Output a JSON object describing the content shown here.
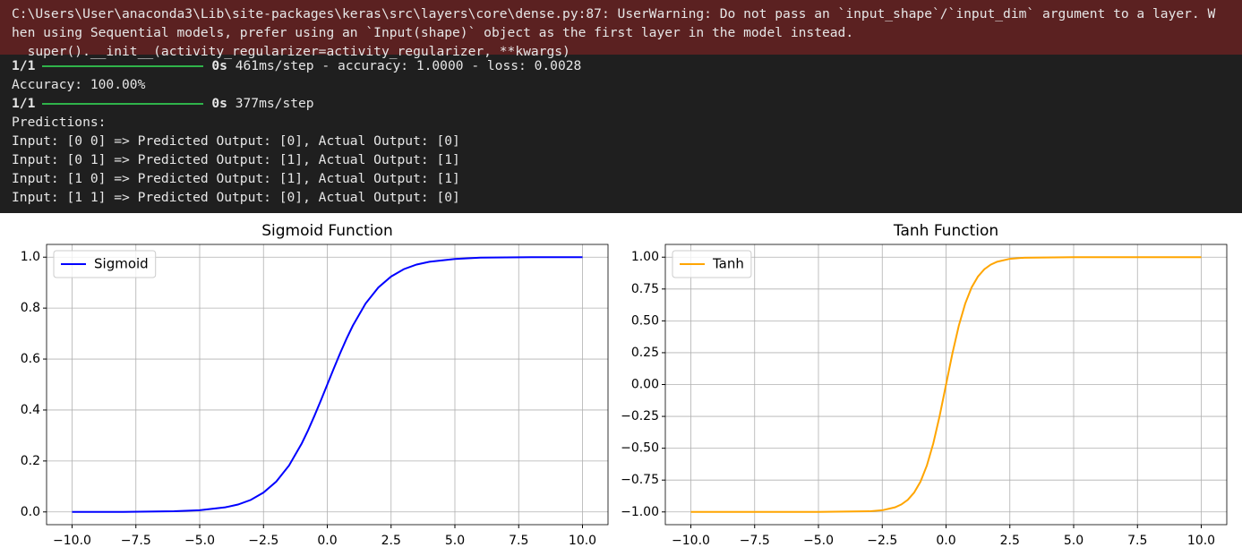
{
  "console": {
    "warning_lines": [
      "C:\\Users\\User\\anaconda3\\Lib\\site-packages\\keras\\src\\layers\\core\\dense.py:87: UserWarning: Do not pass an `input_shape`/`input_dim` argument to a layer. W",
      "hen using Sequential models, prefer using an `Input(shape)` object as the first layer in the model instead.",
      "  super().__init__(activity_regularizer=activity_regularizer, **kwargs)"
    ],
    "lines": [
      {
        "step": "1/1",
        "time": "0s",
        "info": "461ms/step - accuracy: 1.0000 - loss: 0.0028"
      },
      "Accuracy: 100.00%",
      {
        "step": "1/1",
        "time": "0s",
        "info": "377ms/step"
      },
      "Predictions:",
      "Input: [0 0] => Predicted Output: [0], Actual Output: [0]",
      "Input: [0 1] => Predicted Output: [1], Actual Output: [1]",
      "Input: [1 0] => Predicted Output: [1], Actual Output: [1]",
      "Input: [1 1] => Predicted Output: [0], Actual Output: [0]"
    ]
  },
  "chart_data": [
    {
      "type": "line",
      "title": "Sigmoid Function",
      "x": [
        -10,
        -8,
        -6,
        -5,
        -4,
        -3.5,
        -3,
        -2.5,
        -2,
        -1.5,
        -1,
        -0.75,
        -0.5,
        -0.25,
        0,
        0.25,
        0.5,
        0.75,
        1,
        1.5,
        2,
        2.5,
        3,
        3.5,
        4,
        5,
        6,
        8,
        10
      ],
      "series": [
        {
          "name": "Sigmoid",
          "color": "#0000ff",
          "values": [
            0.0,
            0.0003,
            0.0025,
            0.0067,
            0.018,
            0.029,
            0.047,
            0.076,
            0.119,
            0.182,
            0.269,
            0.321,
            0.378,
            0.438,
            0.5,
            0.562,
            0.622,
            0.679,
            0.731,
            0.818,
            0.881,
            0.924,
            0.953,
            0.971,
            0.982,
            0.993,
            0.998,
            0.9997,
            1.0
          ]
        }
      ],
      "xlim": [
        -11,
        11
      ],
      "xticks": [
        {
          "value": -10,
          "label": "−10.0"
        },
        {
          "value": -7.5,
          "label": "−7.5"
        },
        {
          "value": -5,
          "label": "−5.0"
        },
        {
          "value": -2.5,
          "label": "−2.5"
        },
        {
          "value": 0,
          "label": "0.0"
        },
        {
          "value": 2.5,
          "label": "2.5"
        },
        {
          "value": 5,
          "label": "5.0"
        },
        {
          "value": 7.5,
          "label": "7.5"
        },
        {
          "value": 10,
          "label": "10.0"
        }
      ],
      "ylim": [
        -0.05,
        1.05
      ],
      "yticks": [
        {
          "value": 0,
          "label": "0.0"
        },
        {
          "value": 0.2,
          "label": "0.2"
        },
        {
          "value": 0.4,
          "label": "0.4"
        },
        {
          "value": 0.6,
          "label": "0.6"
        },
        {
          "value": 0.8,
          "label": "0.8"
        },
        {
          "value": 1,
          "label": "1.0"
        }
      ],
      "grid": true,
      "legend": "upper left"
    },
    {
      "type": "line",
      "title": "Tanh Function",
      "x": [
        -10,
        -5,
        -3,
        -2.5,
        -2,
        -1.75,
        -1.5,
        -1.25,
        -1,
        -0.75,
        -0.5,
        -0.25,
        0,
        0.25,
        0.5,
        0.75,
        1,
        1.25,
        1.5,
        1.75,
        2,
        2.5,
        3,
        5,
        10
      ],
      "series": [
        {
          "name": "Tanh",
          "color": "#ffa500",
          "values": [
            -1.0,
            -1.0,
            -0.995,
            -0.987,
            -0.964,
            -0.941,
            -0.905,
            -0.848,
            -0.762,
            -0.635,
            -0.462,
            -0.245,
            0,
            0.245,
            0.462,
            0.635,
            0.762,
            0.848,
            0.905,
            0.941,
            0.964,
            0.987,
            0.995,
            1.0,
            1.0
          ]
        }
      ],
      "xlim": [
        -11,
        11
      ],
      "xticks": [
        {
          "value": -10,
          "label": "−10.0"
        },
        {
          "value": -7.5,
          "label": "−7.5"
        },
        {
          "value": -5,
          "label": "−5.0"
        },
        {
          "value": -2.5,
          "label": "−2.5"
        },
        {
          "value": 0,
          "label": "0.0"
        },
        {
          "value": 2.5,
          "label": "2.5"
        },
        {
          "value": 5,
          "label": "5.0"
        },
        {
          "value": 7.5,
          "label": "7.5"
        },
        {
          "value": 10,
          "label": "10.0"
        }
      ],
      "ylim": [
        -1.1,
        1.1
      ],
      "yticks": [
        {
          "value": -1,
          "label": "−1.00"
        },
        {
          "value": -0.75,
          "label": "−0.75"
        },
        {
          "value": -0.5,
          "label": "−0.50"
        },
        {
          "value": -0.25,
          "label": "−0.25"
        },
        {
          "value": 0,
          "label": "0.00"
        },
        {
          "value": 0.25,
          "label": "0.25"
        },
        {
          "value": 0.5,
          "label": "0.50"
        },
        {
          "value": 0.75,
          "label": "0.75"
        },
        {
          "value": 1,
          "label": "1.00"
        }
      ],
      "grid": true,
      "legend": "upper left"
    }
  ]
}
